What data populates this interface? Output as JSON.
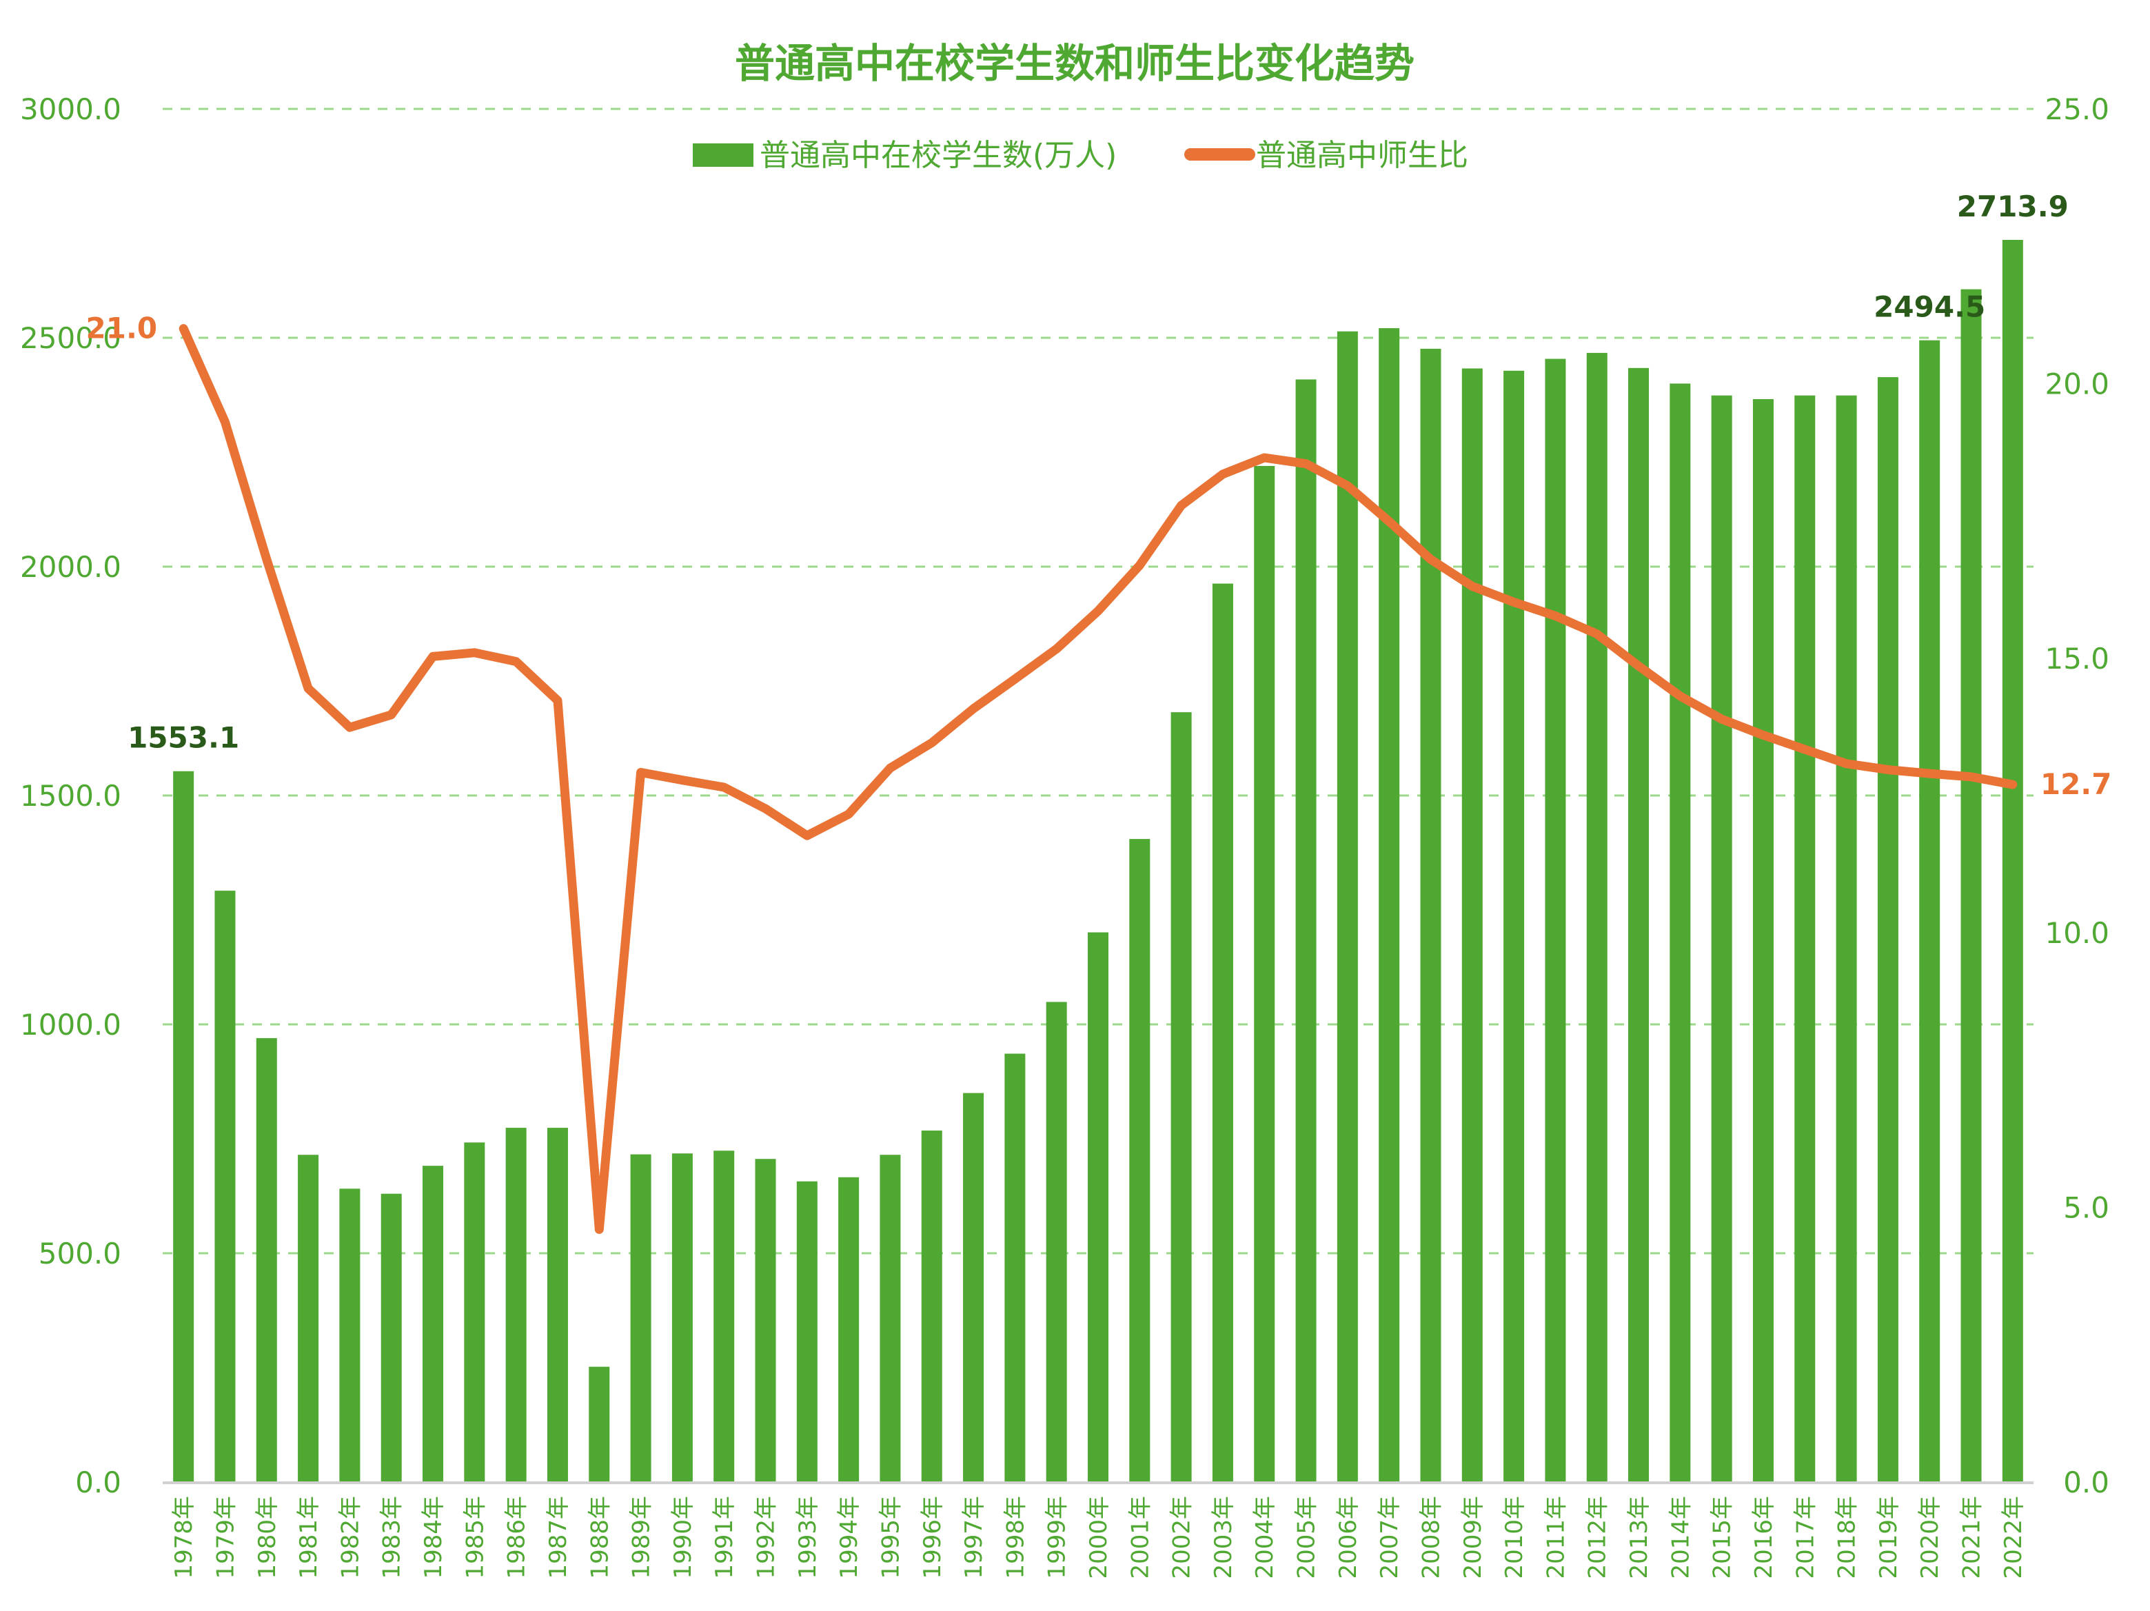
{
  "colors": {
    "bar": "#4FA832",
    "line": "#E87335",
    "text_green": "#4FA832",
    "data_label_dark": "#2A5A1A",
    "grid": "#9BD88A",
    "axis_line": "#D0D0D0",
    "background": "#FFFFFF"
  },
  "chart_data": {
    "type": "bar+line",
    "title": "普通高中在校学生数和师生比变化趋势",
    "xlabel": "",
    "ylabel_left": "",
    "ylabel_right": "",
    "legend_position": "top",
    "grid": true,
    "y_left": {
      "min": 0,
      "max": 3000,
      "step": 500,
      "ticks": [
        "0.0",
        "500.0",
        "1000.0",
        "1500.0",
        "2000.0",
        "2500.0",
        "3000.0"
      ]
    },
    "y_right": {
      "min": 0,
      "max": 25,
      "step": 5,
      "ticks": [
        "0.0",
        "5.0",
        "10.0",
        "15.0",
        "20.0",
        "25.0"
      ]
    },
    "categories": [
      "1978年",
      "1979年",
      "1980年",
      "1981年",
      "1982年",
      "1983年",
      "1984年",
      "1985年",
      "1986年",
      "1987年",
      "1988年",
      "1989年",
      "1990年",
      "1991年",
      "1992年",
      "1993年",
      "1994年",
      "1995年",
      "1996年",
      "1997年",
      "1998年",
      "1999年",
      "2000年",
      "2001年",
      "2002年",
      "2003年",
      "2004年",
      "2005年",
      "2006年",
      "2007年",
      "2008年",
      "2009年",
      "2010年",
      "2011年",
      "2012年",
      "2013年",
      "2014年",
      "2015年",
      "2016年",
      "2017年",
      "2018年",
      "2019年",
      "2020年",
      "2021年",
      "2022年"
    ],
    "series": [
      {
        "name": "普通高中在校学生数(万人)",
        "type": "bar",
        "axis": "left",
        "values": [
          1553.1,
          1292,
          970,
          715,
          641,
          630,
          691,
          742,
          774,
          774,
          252,
          716,
          718,
          724,
          706,
          657,
          666,
          715,
          768,
          850,
          936,
          1049,
          1201,
          1405,
          1682,
          1963,
          2220,
          2409,
          2514,
          2521,
          2476,
          2433,
          2428,
          2454,
          2467,
          2434,
          2400,
          2374,
          2366,
          2374,
          2374,
          2414,
          2494.5,
          2606,
          2713.9
        ],
        "data_labels": [
          {
            "index": 0,
            "text": "1553.1"
          },
          {
            "index": 42,
            "text": "2494.5"
          },
          {
            "index": 44,
            "text": "2713.9"
          }
        ]
      },
      {
        "name": "普通高中师生比",
        "type": "line",
        "axis": "right",
        "values": [
          21.0,
          19.3,
          16.8,
          14.45,
          13.74,
          13.97,
          15.03,
          15.1,
          14.94,
          14.23,
          4.6,
          12.92,
          12.78,
          12.65,
          12.26,
          11.77,
          12.16,
          13.0,
          13.46,
          14.08,
          14.62,
          15.17,
          15.86,
          16.69,
          17.78,
          18.35,
          18.65,
          18.54,
          18.14,
          17.49,
          16.8,
          16.31,
          16.02,
          15.77,
          15.44,
          14.86,
          14.31,
          13.89,
          13.6,
          13.34,
          13.08,
          12.97,
          12.9,
          12.84,
          12.7
        ],
        "data_labels": [
          {
            "index": 0,
            "text": "21.0"
          },
          {
            "index": 44,
            "text": "12.7"
          }
        ]
      }
    ]
  }
}
